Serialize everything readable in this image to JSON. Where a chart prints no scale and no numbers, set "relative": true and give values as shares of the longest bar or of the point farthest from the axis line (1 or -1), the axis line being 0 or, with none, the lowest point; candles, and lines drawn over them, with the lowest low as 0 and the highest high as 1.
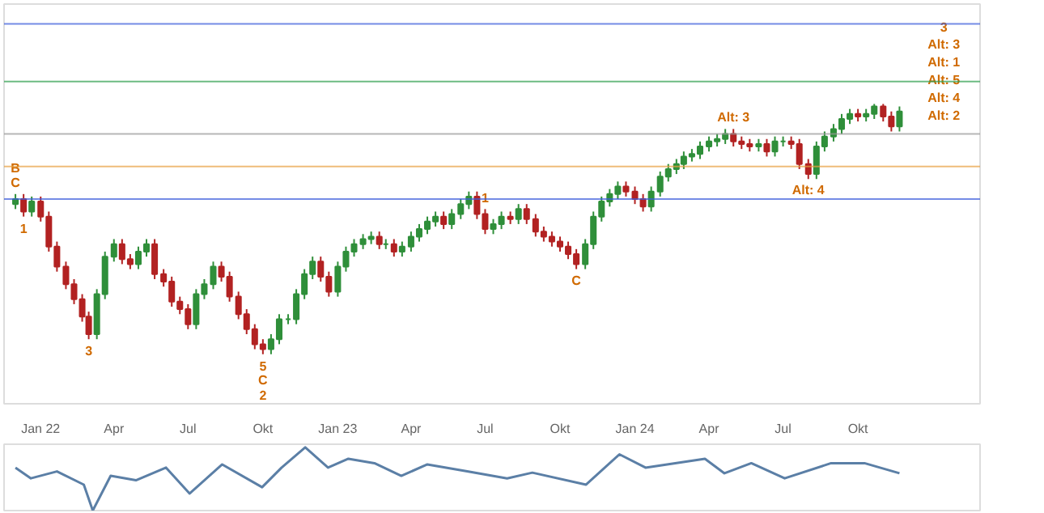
{
  "chart_data": [
    {
      "type": "candlestick",
      "relative": true,
      "x": [
        "2021-12-01",
        "2021-12-11",
        "2021-12-21",
        "2022-01-01",
        "2022-01-11",
        "2022-01-21",
        "2022-02-01",
        "2022-02-11",
        "2022-02-21",
        "2022-03-01",
        "2022-03-11",
        "2022-03-21",
        "2022-04-01",
        "2022-04-11",
        "2022-04-21",
        "2022-05-01",
        "2022-05-11",
        "2022-05-21",
        "2022-06-01",
        "2022-06-11",
        "2022-06-21",
        "2022-07-01",
        "2022-07-11",
        "2022-07-21",
        "2022-08-01",
        "2022-08-11",
        "2022-08-21",
        "2022-09-01",
        "2022-09-11",
        "2022-09-21",
        "2022-10-01",
        "2022-10-11",
        "2022-10-21",
        "2022-11-01",
        "2022-11-11",
        "2022-11-21",
        "2022-12-01",
        "2022-12-11",
        "2022-12-21",
        "2023-01-01",
        "2023-01-11",
        "2023-01-21",
        "2023-02-01",
        "2023-02-11",
        "2023-02-21",
        "2023-03-01",
        "2023-03-11",
        "2023-03-21",
        "2023-04-01",
        "2023-04-11",
        "2023-04-21",
        "2023-05-01",
        "2023-05-11",
        "2023-05-21",
        "2023-06-01",
        "2023-06-11",
        "2023-06-21",
        "2023-07-01",
        "2023-07-11",
        "2023-07-21",
        "2023-08-01",
        "2023-08-11",
        "2023-08-21",
        "2023-09-01",
        "2023-09-11",
        "2023-09-21",
        "2023-10-01",
        "2023-10-11",
        "2023-10-21",
        "2023-11-01",
        "2023-11-11",
        "2023-11-21",
        "2023-12-01",
        "2023-12-11",
        "2023-12-21",
        "2024-01-01",
        "2024-01-11",
        "2024-01-21",
        "2024-02-01",
        "2024-02-11",
        "2024-02-21",
        "2024-03-01",
        "2024-03-11",
        "2024-03-21",
        "2024-04-01",
        "2024-04-11",
        "2024-04-21",
        "2024-05-01",
        "2024-05-11",
        "2024-05-21",
        "2024-06-01",
        "2024-06-11",
        "2024-06-21",
        "2024-07-01",
        "2024-07-11",
        "2024-07-21",
        "2024-08-01",
        "2024-08-11",
        "2024-08-21",
        "2024-09-01",
        "2024-09-11",
        "2024-09-21",
        "2024-10-01",
        "2024-10-11",
        "2024-10-21",
        "2024-11-01",
        "2024-11-11",
        "2024-11-21"
      ],
      "ohlc": [
        [
          0.6,
          0.64,
          0.58,
          0.62
        ],
        [
          0.62,
          0.64,
          0.55,
          0.57
        ],
        [
          0.57,
          0.63,
          0.55,
          0.61
        ],
        [
          0.61,
          0.63,
          0.53,
          0.55
        ],
        [
          0.55,
          0.57,
          0.41,
          0.43
        ],
        [
          0.43,
          0.45,
          0.33,
          0.35
        ],
        [
          0.35,
          0.37,
          0.26,
          0.28
        ],
        [
          0.28,
          0.3,
          0.2,
          0.22
        ],
        [
          0.22,
          0.24,
          0.13,
          0.15
        ],
        [
          0.15,
          0.17,
          0.06,
          0.08
        ],
        [
          0.08,
          0.26,
          0.06,
          0.24
        ],
        [
          0.24,
          0.41,
          0.22,
          0.39
        ],
        [
          0.39,
          0.46,
          0.37,
          0.44
        ],
        [
          0.44,
          0.46,
          0.36,
          0.38
        ],
        [
          0.38,
          0.4,
          0.34,
          0.36
        ],
        [
          0.36,
          0.43,
          0.34,
          0.41
        ],
        [
          0.41,
          0.46,
          0.39,
          0.44
        ],
        [
          0.44,
          0.46,
          0.3,
          0.32
        ],
        [
          0.32,
          0.34,
          0.27,
          0.29
        ],
        [
          0.29,
          0.31,
          0.19,
          0.21
        ],
        [
          0.21,
          0.23,
          0.16,
          0.18
        ],
        [
          0.18,
          0.2,
          0.1,
          0.12
        ],
        [
          0.12,
          0.26,
          0.1,
          0.24
        ],
        [
          0.24,
          0.3,
          0.22,
          0.28
        ],
        [
          0.28,
          0.37,
          0.26,
          0.35
        ],
        [
          0.35,
          0.37,
          0.29,
          0.31
        ],
        [
          0.31,
          0.33,
          0.21,
          0.23
        ],
        [
          0.23,
          0.25,
          0.14,
          0.16
        ],
        [
          0.16,
          0.18,
          0.08,
          0.1
        ],
        [
          0.1,
          0.12,
          0.02,
          0.04
        ],
        [
          0.04,
          0.06,
          0,
          0.02
        ],
        [
          0.02,
          0.08,
          0,
          0.06
        ],
        [
          0.06,
          0.16,
          0.04,
          0.14
        ],
        [
          0.14,
          0.16,
          0.12,
          0.14
        ],
        [
          0.14,
          0.26,
          0.12,
          0.24
        ],
        [
          0.24,
          0.34,
          0.22,
          0.32
        ],
        [
          0.32,
          0.39,
          0.3,
          0.37
        ],
        [
          0.37,
          0.39,
          0.29,
          0.31
        ],
        [
          0.31,
          0.33,
          0.23,
          0.25
        ],
        [
          0.25,
          0.37,
          0.23,
          0.35
        ],
        [
          0.35,
          0.43,
          0.33,
          0.41
        ],
        [
          0.41,
          0.46,
          0.39,
          0.44
        ],
        [
          0.44,
          0.48,
          0.42,
          0.46
        ],
        [
          0.46,
          0.49,
          0.44,
          0.47
        ],
        [
          0.47,
          0.49,
          0.42,
          0.44
        ],
        [
          0.44,
          0.46,
          0.42,
          0.44
        ],
        [
          0.44,
          0.46,
          0.39,
          0.41
        ],
        [
          0.41,
          0.45,
          0.39,
          0.43
        ],
        [
          0.43,
          0.49,
          0.41,
          0.47
        ],
        [
          0.47,
          0.52,
          0.45,
          0.5
        ],
        [
          0.5,
          0.55,
          0.48,
          0.53
        ],
        [
          0.53,
          0.57,
          0.51,
          0.55
        ],
        [
          0.55,
          0.57,
          0.5,
          0.52
        ],
        [
          0.52,
          0.58,
          0.5,
          0.56
        ],
        [
          0.56,
          0.62,
          0.54,
          0.6
        ],
        [
          0.6,
          0.65,
          0.58,
          0.63
        ],
        [
          0.63,
          0.65,
          0.54,
          0.56
        ],
        [
          0.56,
          0.58,
          0.48,
          0.5
        ],
        [
          0.5,
          0.54,
          0.48,
          0.52
        ],
        [
          0.52,
          0.57,
          0.5,
          0.55
        ],
        [
          0.55,
          0.57,
          0.52,
          0.54
        ],
        [
          0.54,
          0.6,
          0.52,
          0.58
        ],
        [
          0.58,
          0.6,
          0.52,
          0.54
        ],
        [
          0.54,
          0.56,
          0.47,
          0.49
        ],
        [
          0.49,
          0.51,
          0.45,
          0.47
        ],
        [
          0.47,
          0.49,
          0.43,
          0.45
        ],
        [
          0.45,
          0.47,
          0.41,
          0.43
        ],
        [
          0.43,
          0.45,
          0.38,
          0.4
        ],
        [
          0.4,
          0.42,
          0.34,
          0.36
        ],
        [
          0.36,
          0.46,
          0.34,
          0.44
        ],
        [
          0.44,
          0.57,
          0.42,
          0.55
        ],
        [
          0.55,
          0.63,
          0.53,
          0.61
        ],
        [
          0.61,
          0.66,
          0.59,
          0.64
        ],
        [
          0.64,
          0.69,
          0.62,
          0.67
        ],
        [
          0.67,
          0.69,
          0.63,
          0.65
        ],
        [
          0.65,
          0.67,
          0.6,
          0.62
        ],
        [
          0.62,
          0.64,
          0.57,
          0.59
        ],
        [
          0.59,
          0.67,
          0.57,
          0.65
        ],
        [
          0.65,
          0.73,
          0.63,
          0.71
        ],
        [
          0.71,
          0.76,
          0.69,
          0.74
        ],
        [
          0.74,
          0.78,
          0.72,
          0.76
        ],
        [
          0.76,
          0.81,
          0.74,
          0.79
        ],
        [
          0.79,
          0.82,
          0.77,
          0.8
        ],
        [
          0.8,
          0.85,
          0.78,
          0.83
        ],
        [
          0.83,
          0.87,
          0.81,
          0.85
        ],
        [
          0.85,
          0.88,
          0.83,
          0.86
        ],
        [
          0.86,
          0.9,
          0.84,
          0.88
        ],
        [
          0.88,
          0.9,
          0.83,
          0.85
        ],
        [
          0.85,
          0.87,
          0.82,
          0.84
        ],
        [
          0.84,
          0.86,
          0.81,
          0.83
        ],
        [
          0.83,
          0.86,
          0.81,
          0.84
        ],
        [
          0.84,
          0.86,
          0.79,
          0.81
        ],
        [
          0.81,
          0.87,
          0.79,
          0.85
        ],
        [
          0.85,
          0.87,
          0.83,
          0.85
        ],
        [
          0.85,
          0.87,
          0.82,
          0.84
        ],
        [
          0.84,
          0.86,
          0.74,
          0.76
        ],
        [
          0.76,
          0.78,
          0.7,
          0.72
        ],
        [
          0.72,
          0.85,
          0.7,
          0.83
        ],
        [
          0.83,
          0.89,
          0.81,
          0.87
        ],
        [
          0.87,
          0.92,
          0.85,
          0.9
        ],
        [
          0.9,
          0.96,
          0.88,
          0.94
        ],
        [
          0.94,
          0.98,
          0.92,
          0.96
        ],
        [
          0.96,
          0.98,
          0.93,
          0.95
        ],
        [
          0.95,
          0.98,
          0.93,
          0.96
        ],
        [
          0.96,
          1,
          0.94,
          0.99
        ],
        [
          0.99,
          1,
          0.93,
          0.95
        ],
        [
          0.95,
          0.97,
          0.89,
          0.91
        ],
        [
          0.91,
          0.99,
          0.89,
          0.97
        ]
      ],
      "xlim": [
        "2021-11-17",
        "2025-02-28"
      ],
      "xticks": [
        {
          "value": "2022-01-01",
          "label": "Jan 22"
        },
        {
          "value": "2022-04-01",
          "label": "Apr"
        },
        {
          "value": "2022-07-01",
          "label": "Jul"
        },
        {
          "value": "2022-10-01",
          "label": "Okt"
        },
        {
          "value": "2023-01-01",
          "label": "Jan 23"
        },
        {
          "value": "2023-04-01",
          "label": "Apr"
        },
        {
          "value": "2023-07-01",
          "label": "Jul"
        },
        {
          "value": "2023-10-01",
          "label": "Okt"
        },
        {
          "value": "2024-01-01",
          "label": "Jan 24"
        },
        {
          "value": "2024-04-01",
          "label": "Apr"
        },
        {
          "value": "2024-07-01",
          "label": "Jul"
        },
        {
          "value": "2024-10-01",
          "label": "Okt"
        }
      ],
      "ref_lines": [
        {
          "axis": "y",
          "value": 1.32,
          "color": "#3b5bdb"
        },
        {
          "axis": "y",
          "value": 1.09,
          "color": "#2e9e4f"
        },
        {
          "axis": "y",
          "value": 0.88,
          "color": "#999999"
        },
        {
          "axis": "y",
          "value": 0.75,
          "color": "#e8a040"
        },
        {
          "axis": "y",
          "value": 0.62,
          "color": "#3b5bdb"
        }
      ],
      "annotations": [
        {
          "text": "B",
          "x": "2021-12-01",
          "y": 0.64
        },
        {
          "text": "C",
          "x": "2021-12-01",
          "y": 0.64
        },
        {
          "text": "1",
          "x": "2021-12-11",
          "y": 0.55
        },
        {
          "text": "3",
          "x": "2022-03-01",
          "y": 0.06
        },
        {
          "text": "5",
          "x": "2022-10-01",
          "y": 0
        },
        {
          "text": "C",
          "x": "2022-10-01",
          "y": 0
        },
        {
          "text": "2",
          "x": "2022-10-01",
          "y": 0
        },
        {
          "text": "1",
          "x": "2023-07-01",
          "y": 0.58
        },
        {
          "text": "C",
          "x": "2023-10-21",
          "y": 0.34
        },
        {
          "text": "Alt: 3",
          "x": "2024-05-01",
          "y": 0.9
        },
        {
          "text": "Alt: 4",
          "x": "2024-08-01",
          "y": 0.7
        },
        "3",
        "Alt: 3",
        "Alt: 1",
        "Alt: 5",
        "Alt: 4",
        "Alt: 2"
      ]
    },
    {
      "type": "line",
      "relative": true,
      "xlim": [
        "2021-11-17",
        "2025-02-28"
      ],
      "series": [
        {
          "color": "#5b7fa6",
          "x": [
            "2021-12-01",
            "2021-12-20",
            "2022-01-21",
            "2022-02-23",
            "2022-03-06",
            "2022-03-28",
            "2022-04-28",
            "2022-06-04",
            "2022-07-03",
            "2022-08-12",
            "2022-09-30",
            "2022-10-24",
            "2022-11-22",
            "2022-12-20",
            "2023-01-14",
            "2023-02-15",
            "2023-03-20",
            "2023-04-21",
            "2023-06-09",
            "2023-07-28",
            "2023-08-28",
            "2023-11-02",
            "2023-12-13",
            "2024-01-14",
            "2024-03-27",
            "2024-04-20",
            "2024-05-23",
            "2024-07-03",
            "2024-08-29",
            "2024-10-09",
            "2024-11-21"
          ],
          "values": [
            0.68,
            0.51,
            0.62,
            0.41,
            0,
            0.55,
            0.48,
            0.68,
            0.27,
            0.73,
            0.37,
            0.68,
            1,
            0.68,
            0.82,
            0.75,
            0.55,
            0.73,
            0.62,
            0.51,
            0.6,
            0.41,
            0.89,
            0.68,
            0.82,
            0.59,
            0.75,
            0.51,
            0.75,
            0.75,
            0.59
          ]
        }
      ]
    }
  ]
}
